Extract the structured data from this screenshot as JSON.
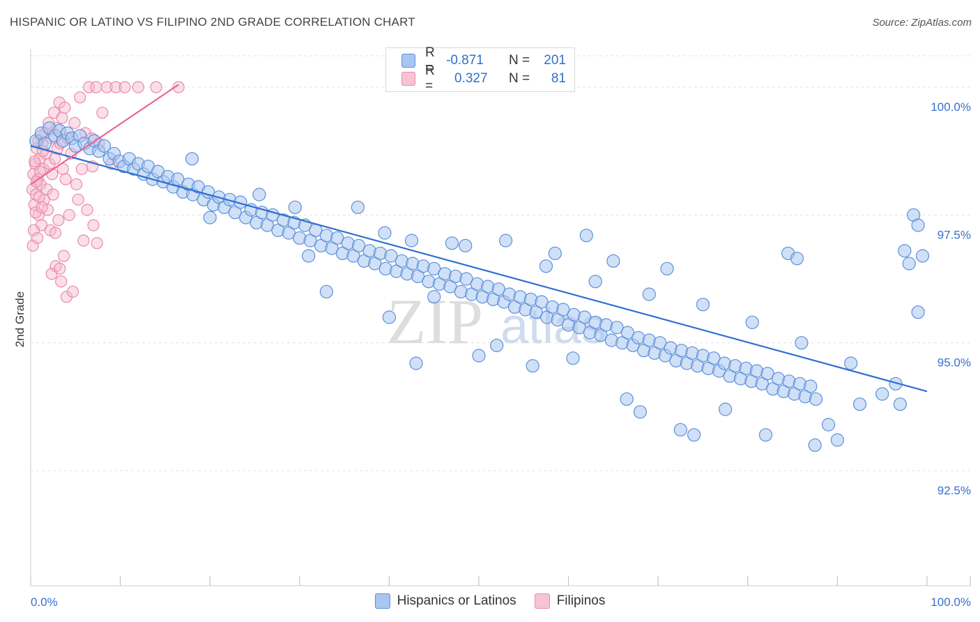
{
  "header": {
    "title": "HISPANIC OR LATINO VS FILIPINO 2ND GRADE CORRELATION CHART",
    "source": "Source: ZipAtlas.com"
  },
  "watermark": {
    "zip": "ZIP",
    "atlas": "atlas"
  },
  "legend_top": {
    "rows": [
      {
        "r_label": "R =",
        "r_value": "-0.871",
        "n_label": "N =",
        "n_value": "201"
      },
      {
        "r_label": "R =",
        "r_value": "0.327",
        "n_label": "N =",
        "n_value": "81"
      }
    ]
  },
  "legend_bottom": {
    "items": [
      {
        "label": "Hispanics or Latinos"
      },
      {
        "label": "Filipinos"
      }
    ]
  },
  "colors": {
    "blue_fill": "#a9c6ee",
    "blue_stroke": "#5b8fdb",
    "blue_line": "#2f6fd0",
    "pink_fill": "#f6b8cb",
    "pink_stroke": "#e98aa8",
    "pink_line": "#e8669a",
    "grid": "#e3e3e3",
    "tick_text": "#3a6fd0"
  },
  "chart_data": {
    "type": "scatter",
    "title": "HISPANIC OR LATINO VS FILIPINO 2ND GRADE CORRELATION CHART",
    "xlabel": "",
    "ylabel": "2nd Grade",
    "xlim": [
      0,
      100
    ],
    "ylim": [
      90.25,
      100.75
    ],
    "x_tick_labels": [
      {
        "value": 0,
        "label": "0.0%"
      },
      {
        "value": 100,
        "label": "100.0%"
      }
    ],
    "y_ticks": [
      {
        "value": 92.5,
        "label": "92.5%"
      },
      {
        "value": 95.0,
        "label": "95.0%"
      },
      {
        "value": 97.5,
        "label": "97.5%"
      },
      {
        "value": 100.0,
        "label": "100.0%"
      }
    ],
    "series": [
      {
        "name": "Hispanics or Latinos",
        "color": "blue",
        "R": -0.871,
        "N": 201,
        "trend": {
          "x0": 0,
          "y0": 98.85,
          "x1": 100,
          "y1": 94.05
        },
        "points": [
          [
            0.6,
            98.95
          ],
          [
            1.2,
            99.1
          ],
          [
            1.6,
            98.9
          ],
          [
            2.1,
            99.2
          ],
          [
            2.7,
            99.05
          ],
          [
            3.2,
            99.15
          ],
          [
            3.6,
            98.95
          ],
          [
            4.1,
            99.1
          ],
          [
            4.6,
            99.0
          ],
          [
            5.0,
            98.85
          ],
          [
            5.5,
            99.05
          ],
          [
            6.0,
            98.9
          ],
          [
            6.6,
            98.8
          ],
          [
            7.1,
            98.95
          ],
          [
            7.6,
            98.75
          ],
          [
            8.2,
            98.85
          ],
          [
            8.8,
            98.6
          ],
          [
            9.3,
            98.7
          ],
          [
            9.9,
            98.55
          ],
          [
            10.4,
            98.45
          ],
          [
            11.0,
            98.6
          ],
          [
            11.5,
            98.4
          ],
          [
            12.0,
            98.5
          ],
          [
            12.6,
            98.3
          ],
          [
            13.1,
            98.45
          ],
          [
            13.6,
            98.2
          ],
          [
            14.2,
            98.35
          ],
          [
            14.8,
            98.15
          ],
          [
            15.3,
            98.25
          ],
          [
            15.9,
            98.05
          ],
          [
            16.4,
            98.2
          ],
          [
            17.0,
            97.95
          ],
          [
            17.6,
            98.1
          ],
          [
            18.1,
            97.9
          ],
          [
            18.7,
            98.05
          ],
          [
            19.3,
            97.8
          ],
          [
            19.8,
            97.95
          ],
          [
            20.4,
            97.7
          ],
          [
            21.0,
            97.85
          ],
          [
            21.6,
            97.65
          ],
          [
            22.2,
            97.8
          ],
          [
            22.8,
            97.55
          ],
          [
            23.4,
            97.75
          ],
          [
            24.0,
            97.45
          ],
          [
            24.6,
            97.6
          ],
          [
            25.2,
            97.35
          ],
          [
            25.8,
            97.55
          ],
          [
            26.4,
            97.3
          ],
          [
            27.0,
            97.5
          ],
          [
            27.6,
            97.2
          ],
          [
            28.2,
            97.4
          ],
          [
            28.8,
            97.15
          ],
          [
            29.4,
            97.35
          ],
          [
            30.0,
            97.05
          ],
          [
            30.6,
            97.3
          ],
          [
            31.2,
            97.0
          ],
          [
            31.8,
            97.2
          ],
          [
            32.4,
            96.9
          ],
          [
            33.0,
            97.1
          ],
          [
            33.6,
            96.85
          ],
          [
            34.2,
            97.05
          ],
          [
            34.8,
            96.75
          ],
          [
            35.4,
            96.95
          ],
          [
            36.0,
            96.7
          ],
          [
            36.6,
            96.9
          ],
          [
            37.2,
            96.6
          ],
          [
            37.8,
            96.8
          ],
          [
            38.4,
            96.55
          ],
          [
            39.0,
            96.75
          ],
          [
            39.6,
            96.45
          ],
          [
            40.2,
            96.7
          ],
          [
            40.8,
            96.4
          ],
          [
            41.4,
            96.6
          ],
          [
            42.0,
            96.35
          ],
          [
            42.6,
            96.55
          ],
          [
            43.2,
            96.3
          ],
          [
            43.8,
            96.5
          ],
          [
            44.4,
            96.2
          ],
          [
            45.0,
            96.45
          ],
          [
            45.6,
            96.15
          ],
          [
            46.2,
            96.35
          ],
          [
            46.8,
            96.1
          ],
          [
            47.4,
            96.3
          ],
          [
            48.0,
            96.0
          ],
          [
            48.6,
            96.25
          ],
          [
            49.2,
            95.95
          ],
          [
            49.8,
            96.15
          ],
          [
            50.4,
            95.9
          ],
          [
            51.0,
            96.1
          ],
          [
            51.6,
            95.85
          ],
          [
            52.2,
            96.05
          ],
          [
            52.8,
            95.8
          ],
          [
            53.4,
            95.95
          ],
          [
            54.0,
            95.7
          ],
          [
            54.6,
            95.9
          ],
          [
            55.2,
            95.65
          ],
          [
            55.8,
            95.85
          ],
          [
            56.4,
            95.6
          ],
          [
            57.0,
            95.8
          ],
          [
            57.6,
            95.5
          ],
          [
            58.2,
            95.7
          ],
          [
            58.8,
            95.45
          ],
          [
            59.4,
            95.65
          ],
          [
            60.0,
            95.35
          ],
          [
            60.6,
            95.55
          ],
          [
            61.2,
            95.3
          ],
          [
            61.8,
            95.5
          ],
          [
            62.4,
            95.2
          ],
          [
            63.0,
            95.4
          ],
          [
            63.6,
            95.15
          ],
          [
            64.2,
            95.35
          ],
          [
            64.8,
            95.05
          ],
          [
            65.4,
            95.3
          ],
          [
            66.0,
            95.0
          ],
          [
            66.6,
            95.2
          ],
          [
            67.2,
            94.95
          ],
          [
            67.8,
            95.1
          ],
          [
            68.4,
            94.85
          ],
          [
            69.0,
            95.05
          ],
          [
            69.6,
            94.8
          ],
          [
            70.2,
            95.0
          ],
          [
            70.8,
            94.75
          ],
          [
            71.4,
            94.9
          ],
          [
            72.0,
            94.65
          ],
          [
            72.6,
            94.85
          ],
          [
            73.2,
            94.6
          ],
          [
            73.8,
            94.8
          ],
          [
            74.4,
            94.55
          ],
          [
            75.0,
            94.75
          ],
          [
            75.6,
            94.5
          ],
          [
            76.2,
            94.7
          ],
          [
            76.8,
            94.45
          ],
          [
            77.4,
            94.6
          ],
          [
            78.0,
            94.35
          ],
          [
            78.6,
            94.55
          ],
          [
            79.2,
            94.3
          ],
          [
            79.8,
            94.5
          ],
          [
            80.4,
            94.25
          ],
          [
            81.0,
            94.45
          ],
          [
            81.6,
            94.2
          ],
          [
            82.2,
            94.4
          ],
          [
            82.8,
            94.1
          ],
          [
            83.4,
            94.3
          ],
          [
            84.0,
            94.05
          ],
          [
            84.6,
            94.25
          ],
          [
            85.2,
            94.0
          ],
          [
            85.8,
            94.2
          ],
          [
            86.4,
            93.95
          ],
          [
            87.0,
            94.15
          ],
          [
            87.6,
            93.9
          ],
          [
            18.0,
            98.6
          ],
          [
            25.5,
            97.9
          ],
          [
            31.0,
            96.7
          ],
          [
            36.5,
            97.65
          ],
          [
            42.5,
            97.0
          ],
          [
            48.5,
            96.9
          ],
          [
            57.5,
            96.5
          ],
          [
            63.0,
            96.2
          ],
          [
            69.0,
            95.95
          ],
          [
            75.0,
            95.75
          ],
          [
            80.5,
            95.4
          ],
          [
            86.0,
            95.0
          ],
          [
            91.5,
            94.6
          ],
          [
            96.5,
            94.2
          ],
          [
            20.0,
            97.45
          ],
          [
            33.0,
            96.0
          ],
          [
            40.0,
            95.5
          ],
          [
            45.0,
            95.9
          ],
          [
            52.0,
            94.95
          ],
          [
            60.5,
            94.7
          ],
          [
            66.5,
            93.9
          ],
          [
            72.5,
            93.3
          ],
          [
            77.5,
            93.7
          ],
          [
            82.0,
            93.2
          ],
          [
            87.5,
            93.0
          ],
          [
            90.0,
            93.1
          ],
          [
            92.5,
            93.8
          ],
          [
            95.0,
            94.0
          ],
          [
            97.0,
            93.8
          ],
          [
            99.0,
            95.6
          ],
          [
            98.5,
            97.5
          ],
          [
            99.0,
            97.3
          ],
          [
            97.5,
            96.8
          ],
          [
            98.0,
            96.55
          ],
          [
            99.5,
            96.7
          ],
          [
            84.5,
            96.75
          ],
          [
            85.5,
            96.65
          ],
          [
            71.0,
            96.45
          ],
          [
            65.0,
            96.6
          ],
          [
            58.5,
            96.75
          ],
          [
            62.0,
            97.1
          ],
          [
            53.0,
            97.0
          ],
          [
            47.0,
            96.95
          ],
          [
            39.5,
            97.15
          ],
          [
            29.5,
            97.65
          ],
          [
            43.0,
            94.6
          ],
          [
            50.0,
            94.75
          ],
          [
            56.0,
            94.55
          ],
          [
            68.0,
            93.65
          ],
          [
            74.0,
            93.2
          ],
          [
            89.0,
            93.4
          ]
        ]
      },
      {
        "name": "Filipinos",
        "color": "pink",
        "R": 0.327,
        "N": 81,
        "trend": {
          "x0": 0,
          "y0": 98.1,
          "x1": 16.5,
          "y1": 100.05
        },
        "points": [
          [
            0.2,
            98.0
          ],
          [
            0.3,
            98.3
          ],
          [
            0.4,
            97.7
          ],
          [
            0.5,
            98.5
          ],
          [
            0.6,
            97.9
          ],
          [
            0.7,
            98.8
          ],
          [
            0.8,
            98.2
          ],
          [
            0.9,
            97.5
          ],
          [
            1.0,
            98.6
          ],
          [
            1.1,
            98.1
          ],
          [
            1.2,
            97.3
          ],
          [
            1.3,
            98.9
          ],
          [
            1.4,
            98.4
          ],
          [
            1.5,
            97.8
          ],
          [
            1.6,
            99.1
          ],
          [
            1.7,
            98.7
          ],
          [
            1.8,
            98.0
          ],
          [
            1.9,
            97.6
          ],
          [
            2.0,
            99.3
          ],
          [
            2.1,
            98.5
          ],
          [
            2.2,
            97.2
          ],
          [
            2.3,
            99.0
          ],
          [
            2.4,
            98.3
          ],
          [
            2.5,
            97.9
          ],
          [
            2.6,
            99.5
          ],
          [
            2.7,
            98.6
          ],
          [
            2.8,
            96.5
          ],
          [
            2.9,
            99.2
          ],
          [
            3.0,
            98.8
          ],
          [
            3.1,
            97.4
          ],
          [
            3.2,
            99.7
          ],
          [
            3.3,
            98.9
          ],
          [
            3.4,
            96.2
          ],
          [
            3.5,
            99.4
          ],
          [
            3.6,
            98.4
          ],
          [
            3.7,
            96.7
          ],
          [
            3.8,
            99.6
          ],
          [
            3.9,
            98.2
          ],
          [
            4.0,
            95.9
          ],
          [
            4.1,
            99.0
          ],
          [
            4.3,
            97.5
          ],
          [
            4.5,
            98.7
          ],
          [
            4.7,
            96.0
          ],
          [
            4.9,
            99.3
          ],
          [
            5.1,
            98.1
          ],
          [
            5.3,
            97.8
          ],
          [
            5.5,
            99.8
          ],
          [
            5.7,
            98.4
          ],
          [
            5.9,
            97.0
          ],
          [
            6.1,
            99.1
          ],
          [
            6.3,
            97.6
          ],
          [
            6.5,
            100.0
          ],
          [
            6.8,
            99.0
          ],
          [
            7.0,
            97.3
          ],
          [
            7.3,
            100.0
          ],
          [
            7.6,
            98.9
          ],
          [
            8.0,
            99.5
          ],
          [
            8.5,
            100.0
          ],
          [
            9.0,
            98.5
          ],
          [
            9.5,
            100.0
          ],
          [
            10.5,
            100.0
          ],
          [
            12.0,
            100.0
          ],
          [
            14.0,
            100.0
          ],
          [
            16.5,
            100.0
          ],
          [
            0.25,
            96.9
          ],
          [
            0.35,
            97.2
          ],
          [
            0.45,
            98.55
          ],
          [
            0.55,
            97.55
          ],
          [
            0.65,
            98.15
          ],
          [
            0.75,
            97.05
          ],
          [
            0.85,
            98.95
          ],
          [
            0.95,
            97.85
          ],
          [
            1.05,
            98.35
          ],
          [
            1.15,
            99.05
          ],
          [
            1.25,
            97.65
          ],
          [
            1.35,
            98.75
          ],
          [
            2.35,
            96.35
          ],
          [
            2.75,
            97.15
          ],
          [
            3.25,
            96.45
          ],
          [
            6.9,
            98.45
          ],
          [
            7.4,
            96.95
          ]
        ]
      }
    ]
  }
}
